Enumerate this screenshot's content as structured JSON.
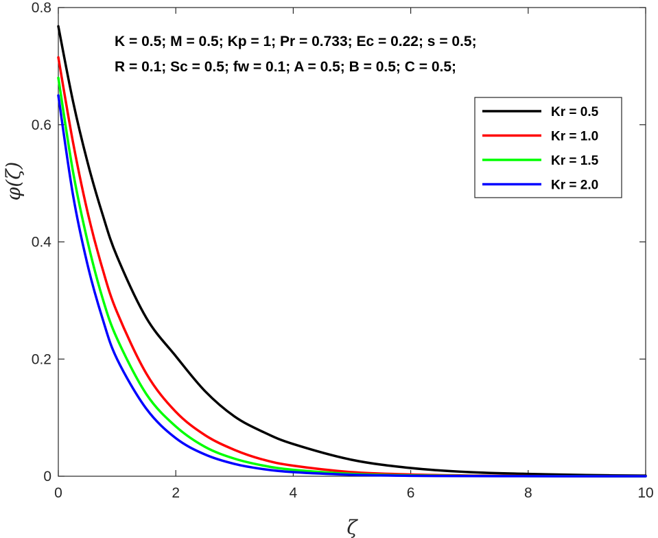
{
  "chart_data": {
    "type": "line",
    "title": "",
    "xlabel": "ζ",
    "ylabel": "φ(ζ)",
    "xlim": [
      0,
      10
    ],
    "ylim": [
      0,
      0.8
    ],
    "xticks": [
      0,
      2,
      4,
      6,
      8,
      10
    ],
    "yticks": [
      0,
      0.2,
      0.4,
      0.6,
      0.8
    ],
    "xtick_labels": [
      "0",
      "2",
      "4",
      "6",
      "8",
      "10"
    ],
    "ytick_labels": [
      "0",
      "0.2",
      "0.4",
      "0.6",
      "0.8"
    ],
    "grid": false,
    "annotations": [
      "K = 0.5; M = 0.5; Kp = 1; Pr = 0.733; Ec = 0.22; s = 0.5;",
      "R = 0.1;  Sc = 0.5; fw = 0.1; A = 0.5; B = 0.5; C = 0.5;"
    ],
    "legend_position": "top-right",
    "x": [
      0,
      0.25,
      0.5,
      0.75,
      1,
      1.5,
      2,
      2.5,
      3,
      3.5,
      4,
      5,
      6,
      7,
      8,
      9,
      10
    ],
    "series": [
      {
        "name": "Kr = 0.5",
        "color": "#000000",
        "values": [
          0.768,
          0.64,
          0.535,
          0.448,
          0.375,
          0.27,
          0.205,
          0.145,
          0.102,
          0.075,
          0.055,
          0.028,
          0.014,
          0.007,
          0.004,
          0.002,
          0.001
        ]
      },
      {
        "name": "Kr = 1.0",
        "color": "#ff0000",
        "values": [
          0.715,
          0.57,
          0.45,
          0.355,
          0.28,
          0.175,
          0.11,
          0.07,
          0.045,
          0.028,
          0.018,
          0.007,
          0.003,
          0.0012,
          0.0005,
          0.0002,
          0.0001
        ]
      },
      {
        "name": "Kr = 1.5",
        "color": "#00ff00",
        "values": [
          0.68,
          0.52,
          0.4,
          0.305,
          0.235,
          0.14,
          0.085,
          0.05,
          0.03,
          0.018,
          0.011,
          0.004,
          0.0015,
          0.0006,
          0.0002,
          0.0001,
          0.0
        ]
      },
      {
        "name": "Kr = 2.0",
        "color": "#0000ff",
        "values": [
          0.65,
          0.48,
          0.36,
          0.27,
          0.2,
          0.115,
          0.065,
          0.037,
          0.021,
          0.012,
          0.007,
          0.0025,
          0.0008,
          0.0003,
          0.0001,
          0.0,
          0.0
        ]
      }
    ]
  }
}
